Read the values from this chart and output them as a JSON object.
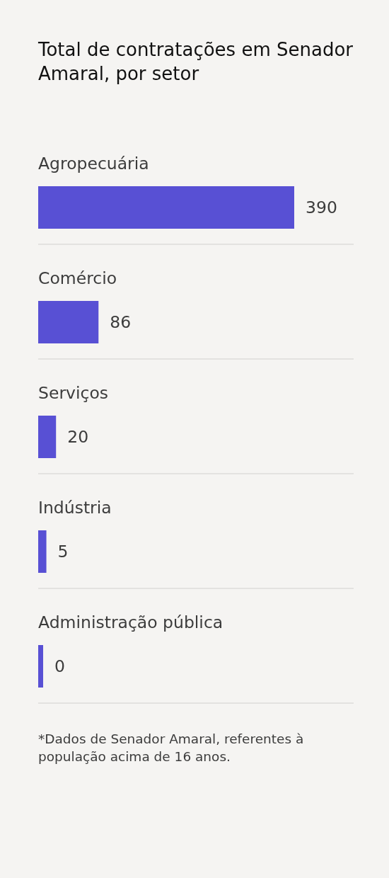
{
  "chart_data": {
    "type": "bar",
    "orientation": "horizontal",
    "title": "Total de contratações em Senador Amaral, por setor",
    "categories": [
      "Agropecuária",
      "Comércio",
      "Serviços",
      "Indústria",
      "Administração pública"
    ],
    "values": [
      390,
      86,
      20,
      5,
      0
    ],
    "color": "#5850d4",
    "data_labels": true,
    "annotations": [
      "*Dados de Senador Amaral, referentes à população acima de 16 anos."
    ]
  }
}
